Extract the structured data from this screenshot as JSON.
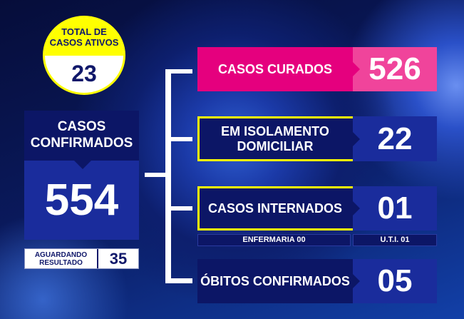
{
  "ativos": {
    "label": "TOTAL DE CASOS ATIVOS",
    "value": "23"
  },
  "confirmados": {
    "label": "CASOS CONFIRMADOS",
    "value": "554"
  },
  "aguardando": {
    "label": "AGUARDANDO RESULTADO",
    "value": "35"
  },
  "curados": {
    "label": "CASOS CURADOS",
    "value": "526"
  },
  "isolamento": {
    "label": "EM ISOLAMENTO DOMICILIAR",
    "value": "22"
  },
  "internados": {
    "label": "CASOS INTERNADOS",
    "value": "01",
    "enfermaria": "ENFERMARIA 00",
    "uti": "U.T.I. 01"
  },
  "obitos": {
    "label": "ÓBITOS CONFIRMADOS",
    "value": "05"
  },
  "colors": {
    "pink": "#e5007e",
    "pink_light": "#f0449b",
    "navy": "#0c1666",
    "blue": "#1a2c9c",
    "yellow": "#ffff00"
  }
}
